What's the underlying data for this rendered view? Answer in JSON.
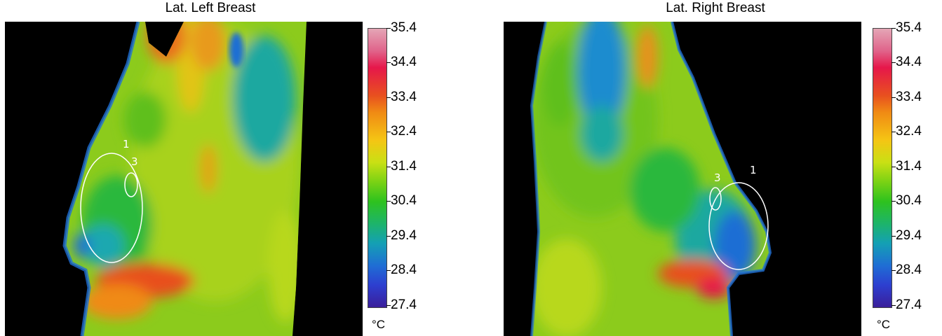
{
  "left_panel": {
    "title": "Lat. Left Breast",
    "roi_labels": [
      "1",
      "3"
    ]
  },
  "right_panel": {
    "title": "Lat. Right Breast",
    "roi_labels": [
      "1",
      "3"
    ]
  },
  "scale": {
    "ticks": [
      "35.4",
      "34.4",
      "33.4",
      "32.4",
      "31.4",
      "30.4",
      "29.4",
      "28.4",
      "27.4"
    ],
    "unit": "°C"
  },
  "colors": {
    "background": "#000000",
    "body_base": "#6fc31c",
    "warm": "#e8501f",
    "cool": "#1f6ed4",
    "roi_outline": "#ffffff"
  }
}
